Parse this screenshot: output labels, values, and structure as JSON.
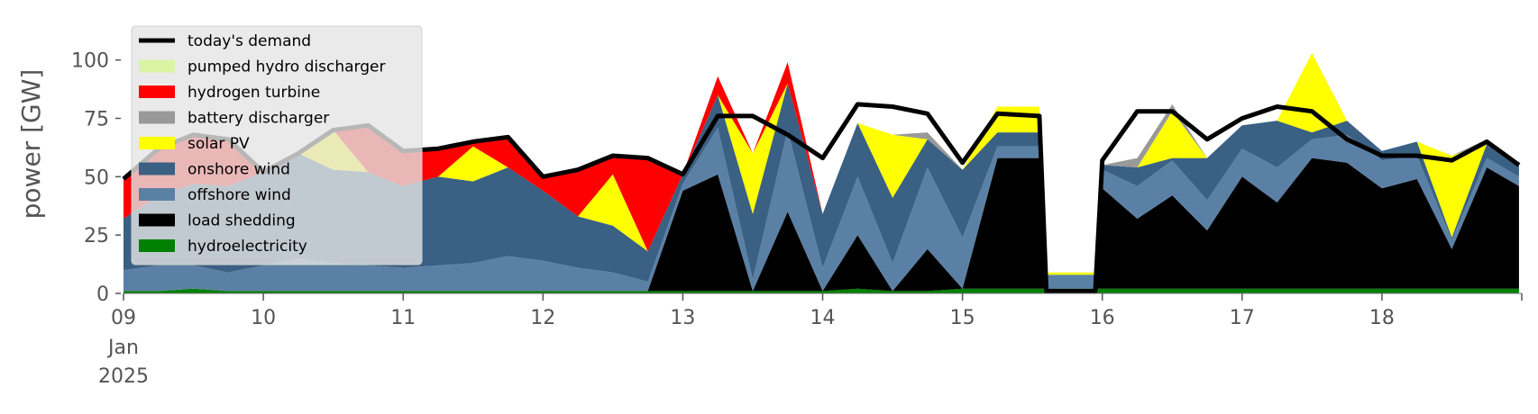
{
  "chart_data": {
    "type": "area",
    "ylabel": "power [GW]",
    "xlabel": "",
    "ylim": [
      0,
      118
    ],
    "yticks": [
      0,
      25,
      50,
      75,
      100
    ],
    "x_start_date": "2025-01-09",
    "x_end_date": "2025-01-19",
    "xtick_labels": [
      "09",
      "10",
      "11",
      "12",
      "13",
      "14",
      "15",
      "16",
      "17",
      "18"
    ],
    "xtick_first_sublabels": [
      "Jan",
      "2025"
    ],
    "grid": false,
    "legend_position": "upper-left",
    "x": [
      9.0,
      9.25,
      9.5,
      9.75,
      10.0,
      10.25,
      10.5,
      10.75,
      11.0,
      11.25,
      11.5,
      11.75,
      12.0,
      12.25,
      12.5,
      12.75,
      13.0,
      13.25,
      13.5,
      13.75,
      14.0,
      14.25,
      14.5,
      14.75,
      15.0,
      15.25,
      15.55,
      15.6,
      15.95,
      16.0,
      16.25,
      16.5,
      16.75,
      17.0,
      17.25,
      17.5,
      17.75,
      18.0,
      18.25,
      18.5,
      18.75,
      18.98
    ],
    "series": [
      {
        "name": "hydroelectricity",
        "color": "#008000",
        "values": [
          1,
          1,
          2,
          1,
          1,
          1,
          1,
          1,
          1,
          1,
          1,
          1,
          1,
          1,
          1,
          1,
          1,
          1,
          1,
          1,
          1,
          2,
          1,
          1,
          2,
          2,
          2,
          2,
          2,
          2,
          2,
          2,
          2,
          2,
          2,
          2,
          2,
          2,
          2,
          2,
          2,
          2
        ]
      },
      {
        "name": "load shedding",
        "color": "#000000",
        "values": [
          0,
          0,
          0,
          0,
          0,
          0,
          0,
          0,
          0,
          0,
          0,
          0,
          0,
          0,
          0,
          0,
          43,
          50,
          0,
          34,
          0,
          23,
          0,
          18,
          0,
          56,
          56,
          0,
          0,
          43,
          30,
          40,
          25,
          48,
          37,
          56,
          54,
          43,
          47,
          17,
          52,
          44
        ]
      },
      {
        "name": "offshore wind",
        "color": "#5b80a5",
        "values": [
          9,
          11,
          10,
          8,
          11,
          14,
          12,
          11,
          10,
          11,
          12,
          15,
          13,
          10,
          8,
          4,
          3,
          20,
          5,
          35,
          10,
          25,
          12,
          35,
          22,
          5,
          5,
          6,
          6,
          8,
          14,
          15,
          13,
          12,
          15,
          8,
          12,
          12,
          10,
          4,
          4,
          4
        ]
      },
      {
        "name": "onshore wind",
        "color": "#3a6083",
        "values": [
          22,
          30,
          35,
          37,
          40,
          45,
          40,
          40,
          35,
          38,
          35,
          38,
          30,
          22,
          20,
          13,
          4,
          14,
          28,
          20,
          23,
          23,
          28,
          12,
          29,
          6,
          6,
          0,
          0,
          2,
          8,
          1,
          18,
          10,
          20,
          3,
          6,
          4,
          6,
          1,
          6,
          5
        ]
      },
      {
        "name": "solar PV",
        "color": "#ffff00",
        "values": [
          0,
          0,
          0,
          0,
          0,
          0,
          17,
          0,
          0,
          0,
          15,
          0,
          0,
          0,
          22,
          0,
          0,
          0,
          26,
          0,
          0,
          0,
          27,
          0,
          0,
          11,
          11,
          1,
          1,
          0,
          0,
          20,
          0,
          0,
          0,
          34,
          0,
          0,
          0,
          35,
          0,
          0
        ]
      },
      {
        "name": "battery discharger",
        "color": "#999999",
        "values": [
          0,
          0,
          0,
          0,
          0,
          0,
          0,
          0,
          0,
          0,
          0,
          0,
          0,
          0,
          0,
          0,
          0,
          0,
          0,
          0,
          0,
          0,
          0,
          3,
          0,
          0,
          0,
          0,
          0,
          0,
          4,
          3,
          0,
          0,
          0,
          0,
          0,
          0,
          0,
          0,
          2,
          0
        ]
      },
      {
        "name": "hydrogen turbine",
        "color": "#ff0000",
        "values": [
          17,
          20,
          21,
          20,
          0,
          0,
          0,
          20,
          15,
          12,
          2,
          13,
          6,
          20,
          8,
          40,
          0,
          8,
          0,
          9,
          0,
          0,
          0,
          0,
          0,
          0,
          0,
          0,
          0,
          0,
          0,
          0,
          0,
          0,
          0,
          0,
          0,
          0,
          0,
          0,
          0,
          0
        ]
      },
      {
        "name": "pumped hydro discharger",
        "color": "#d9f5a3",
        "values": [
          0,
          0,
          0,
          0,
          0,
          0,
          0,
          0,
          0,
          0,
          0,
          0,
          0,
          0,
          0,
          0,
          0,
          0,
          0,
          0,
          0,
          0,
          0,
          0,
          0,
          0,
          0,
          0,
          0,
          0,
          0,
          0,
          0,
          0,
          0,
          0,
          0,
          0,
          0,
          0,
          0,
          0
        ]
      }
    ],
    "demand": {
      "name": "today's demand",
      "color": "#000000",
      "values": [
        49,
        62,
        68,
        66,
        52,
        60,
        70,
        72,
        61,
        62,
        65,
        67,
        50,
        53,
        59,
        58,
        51,
        76,
        76,
        68,
        58,
        81,
        80,
        77,
        56,
        77,
        76,
        1,
        1,
        57,
        78,
        78,
        66,
        75,
        80,
        78,
        66,
        59,
        59,
        57,
        65,
        55
      ]
    },
    "legend": [
      "today's demand",
      "pumped hydro discharger",
      "hydrogen turbine",
      "battery discharger",
      "solar PV",
      "onshore wind",
      "offshore wind",
      "load shedding",
      "hydroelectricity"
    ]
  }
}
